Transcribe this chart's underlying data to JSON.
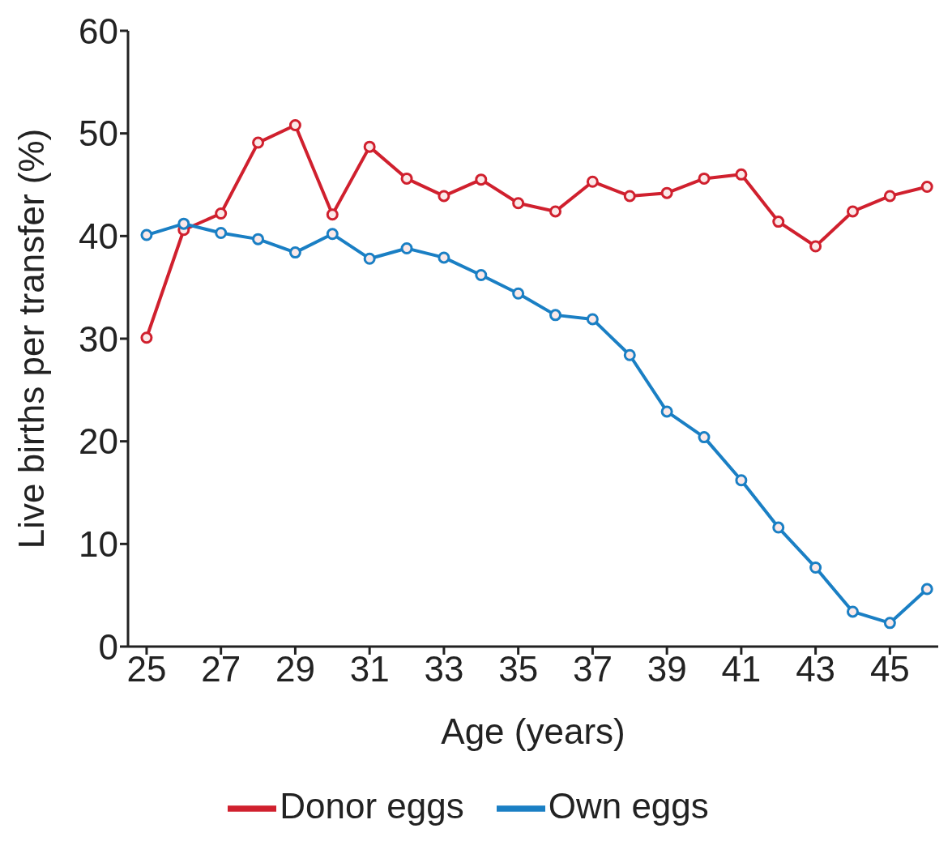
{
  "chart_data": {
    "type": "line",
    "xlabel": "Age (years)",
    "ylabel": "Live births per transfer (%)",
    "x": [
      25,
      26,
      27,
      28,
      29,
      30,
      31,
      32,
      33,
      34,
      35,
      36,
      37,
      38,
      39,
      40,
      41,
      42,
      43,
      44,
      45,
      46
    ],
    "series": [
      {
        "name": "Own eggs",
        "color": "#1a7fc4",
        "values": [
          40.1,
          41.2,
          40.3,
          39.7,
          38.4,
          40.2,
          37.8,
          38.8,
          37.9,
          36.2,
          34.4,
          32.3,
          31.9,
          28.4,
          22.9,
          20.4,
          16.2,
          11.6,
          7.7,
          3.4,
          2.3,
          5.6
        ]
      },
      {
        "name": "Donor eggs",
        "color": "#d0202e",
        "values": [
          30.1,
          40.6,
          42.2,
          49.1,
          50.8,
          42.1,
          48.7,
          45.6,
          43.9,
          45.5,
          43.2,
          42.4,
          45.3,
          43.9,
          44.2,
          45.6,
          46.0,
          41.4,
          39.0,
          42.4,
          43.9,
          44.8
        ]
      }
    ],
    "xlim": [
      24.5,
      46.3
    ],
    "xticks": [
      25,
      27,
      29,
      31,
      33,
      35,
      37,
      39,
      41,
      43,
      45
    ],
    "ylim": [
      0,
      60
    ],
    "yticks": [
      0,
      10,
      20,
      30,
      40,
      50,
      60
    ],
    "grid": false,
    "legend": "bottom",
    "marker": "circle",
    "line_style": "solid"
  }
}
